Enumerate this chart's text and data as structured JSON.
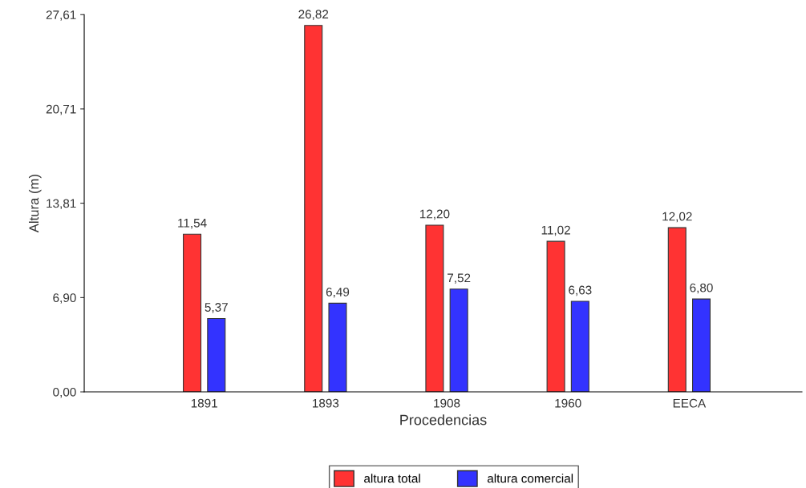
{
  "chart_data": {
    "type": "bar",
    "xlabel": "Procedencias",
    "ylabel": "Altura (m)",
    "categories": [
      "1891",
      "1893",
      "1908",
      "1960",
      "EECA"
    ],
    "series": [
      {
        "name": "altura total",
        "color": "#ff3333",
        "values": [
          11.54,
          26.82,
          12.2,
          11.02,
          12.02
        ],
        "value_labels": [
          "11,54",
          "26,82",
          "12,20",
          "11,02",
          "12,02"
        ]
      },
      {
        "name": "altura comercial",
        "color": "#3333ff",
        "values": [
          5.37,
          6.49,
          7.52,
          6.63,
          6.8
        ],
        "value_labels": [
          "5,37",
          "6,49",
          "7,52",
          "6,63",
          "6,80"
        ]
      }
    ],
    "ylim": [
      0,
      27.61
    ],
    "yticks": [
      {
        "value": 0,
        "label": "0,00"
      },
      {
        "value": 6.9,
        "label": "6,90"
      },
      {
        "value": 13.81,
        "label": "13,81"
      },
      {
        "value": 20.71,
        "label": "20,71"
      },
      {
        "value": 27.61,
        "label": "27,61"
      }
    ],
    "grid": false,
    "legend": "bottom"
  }
}
